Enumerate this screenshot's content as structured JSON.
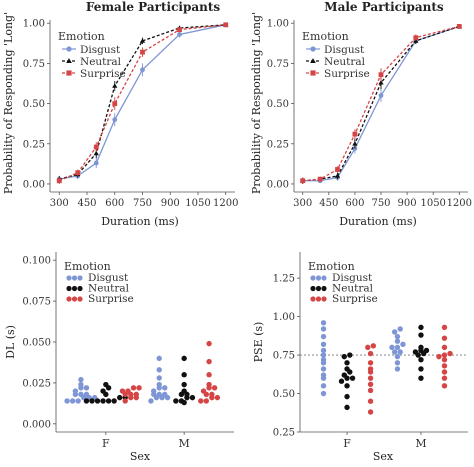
{
  "colors": {
    "disgust": "#7f96d6",
    "neutral": "#111111",
    "surprise": "#d64545",
    "axis": "#555555",
    "refline": "#777777"
  },
  "chart_data": [
    {
      "id": "female",
      "type": "line",
      "title": "Female Participants",
      "xlabel": "Duration (ms)",
      "ylabel": "Probability of Responding 'Long'",
      "xlim": [
        250,
        1250
      ],
      "ylim": [
        -0.05,
        1.02
      ],
      "xticks": [
        300,
        450,
        600,
        750,
        900,
        1050,
        1200
      ],
      "xtick_labels": [
        "300",
        "450",
        "600",
        "750",
        "900",
        "1050",
        "1200"
      ],
      "yticks": [
        0,
        0.25,
        0.5,
        0.75,
        1.0
      ],
      "ytick_labels": [
        "0.00",
        "0.25",
        "0.50",
        "0.75",
        "1.00"
      ],
      "legend_title": "Emotion",
      "legend_position": "top-left",
      "x": [
        300,
        400,
        500,
        600,
        750,
        950,
        1200
      ],
      "series": [
        {
          "name": "Disgust",
          "key": "disgust",
          "values": [
            0.03,
            0.05,
            0.13,
            0.4,
            0.71,
            0.93,
            0.99
          ],
          "err": [
            0.02,
            0.02,
            0.03,
            0.04,
            0.04,
            0.02,
            0.01
          ]
        },
        {
          "name": "Neutral",
          "key": "neutral",
          "values": [
            0.03,
            0.06,
            0.19,
            0.61,
            0.89,
            0.97,
            0.99
          ],
          "err": [
            0.02,
            0.02,
            0.03,
            0.03,
            0.02,
            0.01,
            0.01
          ]
        },
        {
          "name": "Surprise",
          "key": "surprise",
          "values": [
            0.02,
            0.07,
            0.23,
            0.5,
            0.82,
            0.96,
            0.99
          ],
          "err": [
            0.02,
            0.02,
            0.03,
            0.04,
            0.03,
            0.01,
            0.01
          ]
        }
      ]
    },
    {
      "id": "male",
      "type": "line",
      "title": "Male Participants",
      "xlabel": "Duration (ms)",
      "ylabel": "Probability of Responding 'Long'",
      "xlim": [
        250,
        1250
      ],
      "ylim": [
        -0.05,
        1.02
      ],
      "xticks": [
        300,
        450,
        600,
        750,
        900,
        1050,
        1200
      ],
      "xtick_labels": [
        "300",
        "450",
        "600",
        "750",
        "900",
        "1050",
        "1200"
      ],
      "yticks": [
        0,
        0.25,
        0.5,
        0.75,
        1.0
      ],
      "ytick_labels": [
        "0.00",
        "0.25",
        "0.50",
        "0.75",
        "1.00"
      ],
      "legend_title": "Emotion",
      "legend_position": "top-left",
      "x": [
        300,
        400,
        500,
        600,
        750,
        950,
        1200
      ],
      "series": [
        {
          "name": "Disgust",
          "key": "disgust",
          "values": [
            0.02,
            0.02,
            0.04,
            0.22,
            0.55,
            0.89,
            0.98
          ],
          "err": [
            0.02,
            0.01,
            0.02,
            0.03,
            0.04,
            0.02,
            0.01
          ]
        },
        {
          "name": "Neutral",
          "key": "neutral",
          "values": [
            0.02,
            0.03,
            0.05,
            0.25,
            0.63,
            0.89,
            0.98
          ],
          "err": [
            0.02,
            0.01,
            0.02,
            0.03,
            0.04,
            0.02,
            0.01
          ]
        },
        {
          "name": "Surprise",
          "key": "surprise",
          "values": [
            0.02,
            0.03,
            0.09,
            0.31,
            0.68,
            0.91,
            0.98
          ],
          "err": [
            0.02,
            0.01,
            0.02,
            0.03,
            0.04,
            0.02,
            0.01
          ]
        }
      ]
    },
    {
      "id": "dl",
      "type": "scatter",
      "title": "",
      "xlabel": "Sex",
      "ylabel": "DL (s)",
      "ylim": [
        -0.005,
        0.105
      ],
      "yticks": [
        0,
        0.025,
        0.05,
        0.075,
        0.1
      ],
      "ytick_labels": [
        "0.000",
        "0.025",
        "0.050",
        "0.075",
        "0.100"
      ],
      "categories": [
        "F",
        "M"
      ],
      "legend_title": "Emotion",
      "legend_position": "top-left",
      "series": [
        {
          "name": "Disgust",
          "key": "disgust",
          "groups": [
            [
              0.014,
              0.014,
              0.014,
              0.016,
              0.016,
              0.016,
              0.018,
              0.018,
              0.018,
              0.02,
              0.022,
              0.022,
              0.024,
              0.027
            ],
            [
              0.014,
              0.016,
              0.016,
              0.016,
              0.018,
              0.018,
              0.018,
              0.02,
              0.022,
              0.022,
              0.024,
              0.028,
              0.033,
              0.04
            ]
          ]
        },
        {
          "name": "Neutral",
          "key": "neutral",
          "groups": [
            [
              0.014,
              0.014,
              0.014,
              0.014,
              0.014,
              0.014,
              0.016,
              0.016,
              0.018,
              0.02,
              0.022,
              0.024
            ],
            [
              0.013,
              0.014,
              0.014,
              0.016,
              0.016,
              0.018,
              0.018,
              0.02,
              0.024,
              0.03,
              0.04
            ]
          ]
        },
        {
          "name": "Surprise",
          "key": "surprise",
          "groups": [
            [
              0.014,
              0.016,
              0.016,
              0.018,
              0.018,
              0.018,
              0.02,
              0.02,
              0.022,
              0.022
            ],
            [
              0.014,
              0.014,
              0.016,
              0.016,
              0.018,
              0.018,
              0.02,
              0.022,
              0.022,
              0.024,
              0.03,
              0.038,
              0.049
            ]
          ]
        }
      ]
    },
    {
      "id": "pse",
      "type": "scatter",
      "title": "",
      "xlabel": "Sex",
      "ylabel": "PSE (s)",
      "ylim": [
        0.25,
        1.42
      ],
      "yticks": [
        0.25,
        0.5,
        0.75,
        1.0,
        1.25
      ],
      "ytick_labels": [
        "0.25",
        "0.50",
        "0.75",
        "1.00",
        "1.25"
      ],
      "reference_line": 0.75,
      "categories": [
        "F",
        "M"
      ],
      "legend_title": "Emotion",
      "legend_position": "top-left",
      "series": [
        {
          "name": "Disgust",
          "key": "disgust",
          "groups": [
            [
              0.5,
              0.55,
              0.6,
              0.62,
              0.66,
              0.7,
              0.72,
              0.75,
              0.78,
              0.82,
              0.87,
              0.92,
              0.96
            ],
            [
              0.66,
              0.7,
              0.74,
              0.77,
              0.77,
              0.8,
              0.8,
              0.82,
              0.84,
              0.87,
              0.9,
              0.92
            ]
          ]
        },
        {
          "name": "Neutral",
          "key": "neutral",
          "groups": [
            [
              0.41,
              0.48,
              0.55,
              0.58,
              0.6,
              0.6,
              0.62,
              0.64,
              0.66,
              0.7,
              0.74,
              0.75
            ],
            [
              0.6,
              0.66,
              0.72,
              0.75,
              0.76,
              0.77,
              0.78,
              0.78,
              0.8,
              0.88,
              0.93
            ]
          ]
        },
        {
          "name": "Surprise",
          "key": "surprise",
          "groups": [
            [
              0.38,
              0.45,
              0.52,
              0.56,
              0.6,
              0.64,
              0.66,
              0.7,
              0.76,
              0.8,
              0.81
            ],
            [
              0.55,
              0.6,
              0.64,
              0.68,
              0.72,
              0.74,
              0.75,
              0.76,
              0.8,
              0.86,
              0.93
            ]
          ]
        }
      ]
    }
  ]
}
